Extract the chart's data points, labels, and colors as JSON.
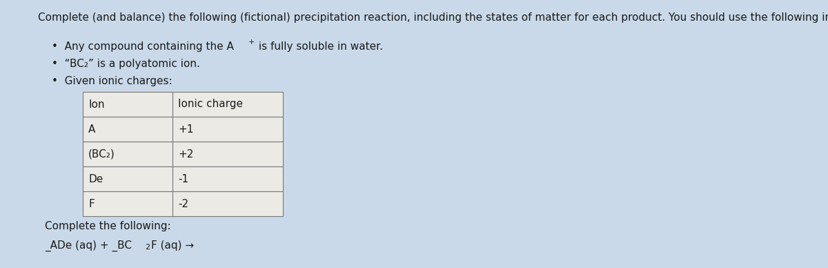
{
  "title": "Complete (and balance) the following (fictional) precipitation reaction, including the states of matter for each product. You should use the following information,",
  "bullet1_pre": "Any compound containing the A",
  "bullet1_sup": "+",
  "bullet1_post": " is fully soluble in water.",
  "bullet2": "“BC₂” is a polyatomic ion.",
  "bullet3": "Given ionic charges:",
  "table_headers": [
    "Ion",
    "Ionic charge"
  ],
  "table_rows": [
    [
      "A",
      "+1"
    ],
    [
      "(BC₂)",
      "+2"
    ],
    [
      "De",
      "-1"
    ],
    [
      "F",
      "-2"
    ]
  ],
  "complete_label": "Complete the following:",
  "background_color": "#c9d9e9",
  "text_color": "#1a1a1a",
  "table_bg": "#eceae4",
  "table_border": "#777777",
  "title_fontsize": 11,
  "body_fontsize": 11,
  "table_fontsize": 11
}
